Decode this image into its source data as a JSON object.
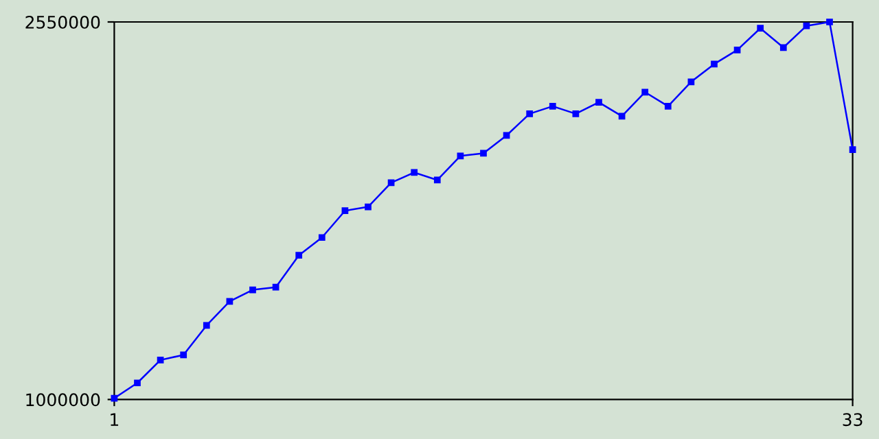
{
  "chart_data": {
    "type": "line",
    "x": [
      1,
      2,
      3,
      4,
      5,
      6,
      7,
      8,
      9,
      10,
      11,
      12,
      13,
      14,
      15,
      16,
      17,
      18,
      19,
      20,
      21,
      22,
      23,
      24,
      25,
      26,
      27,
      28,
      29,
      30,
      31,
      32,
      33
    ],
    "series": [
      {
        "color": "#0000ff",
        "values": [
          1005000,
          1068000,
          1162000,
          1183000,
          1304000,
          1403000,
          1450000,
          1461000,
          1592000,
          1665000,
          1775000,
          1791000,
          1890000,
          1932000,
          1901000,
          2000000,
          2011000,
          2084000,
          2173000,
          2204000,
          2173000,
          2220000,
          2163000,
          2262000,
          2204000,
          2304000,
          2377000,
          2435000,
          2524000,
          2445000,
          2534000,
          2550000,
          2026000
        ]
      }
    ],
    "xlim": [
      1,
      33
    ],
    "xticks": [
      1,
      33
    ],
    "ylim": [
      1000000,
      2550000
    ],
    "yticks": [
      1000000,
      2550000
    ],
    "marker": "square",
    "line_style": "solid",
    "grid": false,
    "legend": false
  }
}
